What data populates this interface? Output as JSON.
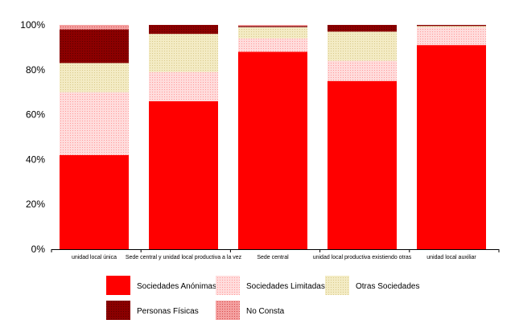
{
  "chart_data": {
    "type": "bar",
    "stacked": true,
    "percent": true,
    "title": "",
    "xlabel": "",
    "ylabel": "",
    "ylim": [
      0,
      100
    ],
    "yticks": [
      "0%",
      "20%",
      "40%",
      "60%",
      "80%",
      "100%"
    ],
    "grid": true,
    "legend_position": "bottom",
    "categories": [
      "unidad local única",
      "Sede central y unidad local productiva a la vez",
      "Sede central",
      "unidad local productiva existiendo otras",
      "unidad local auxiliar"
    ],
    "series": [
      {
        "name": "Sociedades Anónimas",
        "color": "#ff0000",
        "values": [
          42,
          66,
          88,
          75,
          91
        ]
      },
      {
        "name": "Sociedades Limitadas",
        "color": "#ffc8c8",
        "values": [
          28,
          13,
          6,
          9,
          8
        ]
      },
      {
        "name": "Otras Sociedades",
        "color": "#ede3b3",
        "values": [
          13,
          17,
          5,
          13,
          0.5
        ]
      },
      {
        "name": "Personas Físicas",
        "color": "#8b0000",
        "values": [
          15,
          4,
          0.5,
          3,
          0.5
        ]
      },
      {
        "name": "No Consta",
        "color": "#f08080",
        "values": [
          2,
          0,
          0.5,
          0,
          0
        ]
      }
    ]
  }
}
